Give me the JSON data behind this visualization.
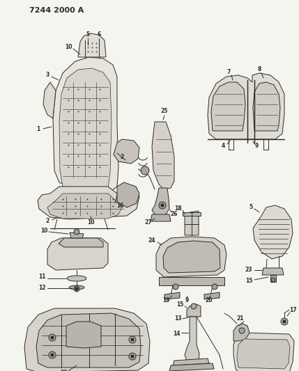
{
  "title": "7244 2000 A",
  "bg": "#f5f5f0",
  "lc": "#2a2a2a",
  "lw": 0.7,
  "fs": 5.5,
  "fw": "bold",
  "fig_w": 4.29,
  "fig_h": 5.33,
  "dpi": 100
}
